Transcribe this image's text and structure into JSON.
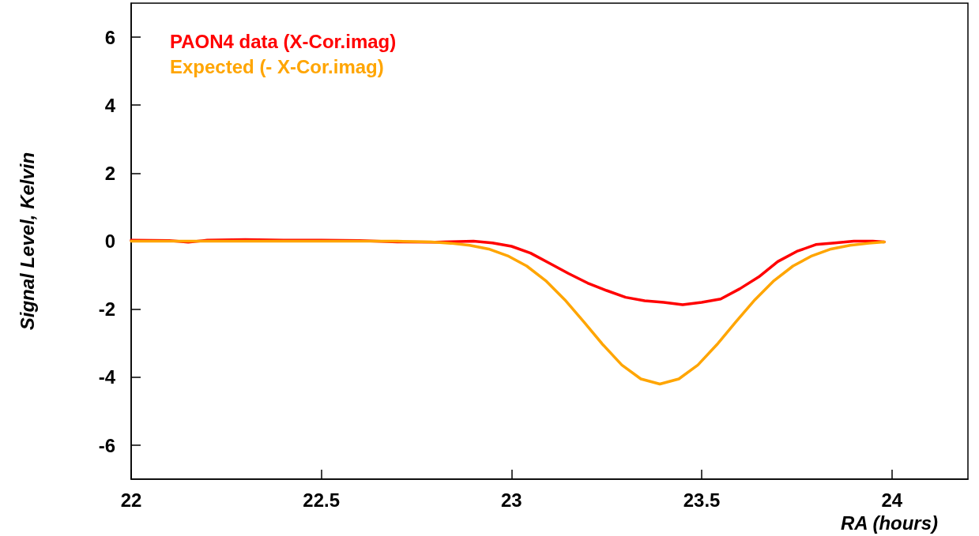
{
  "chart_data": {
    "type": "line",
    "xlabel": "RA (hours)",
    "ylabel": "Signal Level, Kelvin",
    "xlim": [
      22,
      24.2
    ],
    "xticks": [
      22,
      22.5,
      23,
      23.5,
      24
    ],
    "ylim": [
      -7,
      7
    ],
    "yticks": [
      -6,
      -4,
      -2,
      0,
      2,
      4,
      6
    ],
    "grid": false,
    "legend": "top left",
    "marker": "none",
    "line_style": "solid",
    "series": [
      {
        "name": "PAON4 data (X-Cor.imag)",
        "color": "#ff0000",
        "x": [
          22,
          22.1,
          22.15,
          22.2,
          22.3,
          22.4,
          22.5,
          22.6,
          22.7,
          22.8,
          22.9,
          22.95,
          23,
          23.05,
          23.1,
          23.15,
          23.2,
          23.25,
          23.3,
          23.35,
          23.4,
          23.45,
          23.5,
          23.55,
          23.6,
          23.65,
          23.7,
          23.75,
          23.8,
          23.85,
          23.9,
          23.95,
          23.98
        ],
        "values": [
          0.03,
          0.02,
          -0.03,
          0.03,
          0.05,
          0.03,
          0.03,
          0.02,
          -0.02,
          -0.03,
          0,
          -0.05,
          -0.15,
          -0.35,
          -0.65,
          -0.95,
          -1.23,
          -1.45,
          -1.65,
          -1.75,
          -1.8,
          -1.87,
          -1.8,
          -1.7,
          -1.4,
          -1.05,
          -0.6,
          -0.3,
          -0.1,
          -0.05,
          0,
          0,
          -0.02
        ]
      },
      {
        "name": "Expected (- X-Cor.imag)",
        "color": "#ffa500",
        "x": [
          22,
          22.5,
          22.7,
          22.79,
          22.84,
          22.89,
          22.94,
          22.99,
          23.04,
          23.09,
          23.14,
          23.19,
          23.24,
          23.29,
          23.34,
          23.39,
          23.44,
          23.49,
          23.54,
          23.59,
          23.64,
          23.69,
          23.74,
          23.79,
          23.84,
          23.89,
          23.94,
          23.98
        ],
        "values": [
          0,
          0,
          0,
          -0.02,
          -0.06,
          -0.12,
          -0.23,
          -0.43,
          -0.73,
          -1.16,
          -1.72,
          -2.37,
          -3.04,
          -3.64,
          -4.05,
          -4.2,
          -4.05,
          -3.64,
          -3.04,
          -2.37,
          -1.72,
          -1.16,
          -0.73,
          -0.43,
          -0.23,
          -0.12,
          -0.06,
          -0.02
        ]
      }
    ]
  }
}
